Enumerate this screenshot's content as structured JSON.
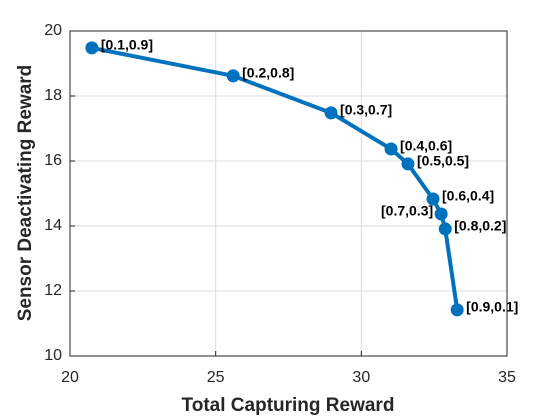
{
  "chart_data": {
    "type": "line",
    "xlabel": "Total Capturing Reward",
    "ylabel": "Sensor Deactivating Reward",
    "x": [
      20.75,
      25.6,
      28.96,
      31.02,
      31.6,
      32.46,
      32.74,
      32.88,
      33.29
    ],
    "series": [
      {
        "color": "#0072bd",
        "values": [
          19.48,
          18.62,
          17.48,
          16.37,
          15.91,
          14.83,
          14.37,
          13.91,
          11.42
        ],
        "point_labels": [
          "[0.1,0.9]",
          "[0.2,0.8]",
          "[0.3,0.7]",
          "[0.4,0.6]",
          "[0.5,0.5]",
          "[0.6,0.4]",
          "[0.7,0.3]",
          "[0.8,0.2]",
          "[0.9,0.1]"
        ]
      }
    ],
    "xlim": [
      20,
      35
    ],
    "xticks": [
      20,
      25,
      30,
      35
    ],
    "ylim": [
      10,
      20
    ],
    "yticks": [
      10,
      12,
      14,
      16,
      18,
      20
    ],
    "grid": true
  }
}
